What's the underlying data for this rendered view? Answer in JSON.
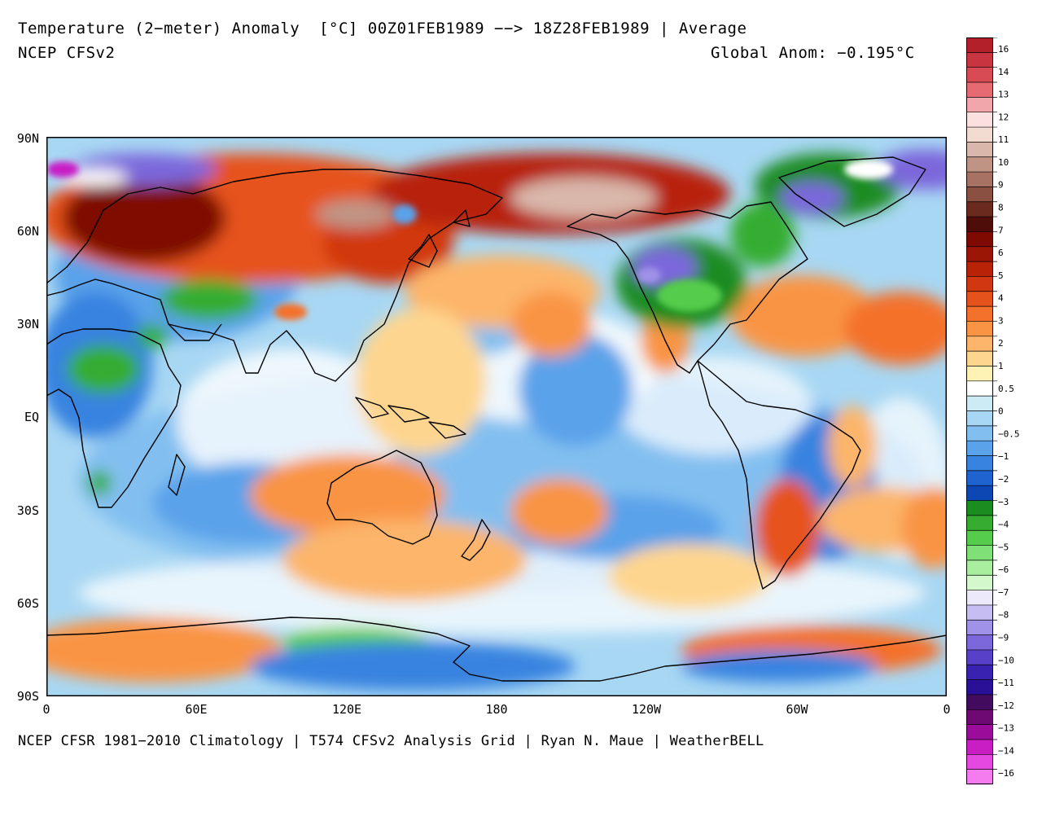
{
  "header": {
    "title": "Temperature (2−meter) Anomaly  [°C] 00Z01FEB1989 −−> 18Z28FEB1989 | Average",
    "model": "NCEP CFSv2",
    "global_anom": "Global Anom: −0.195°C"
  },
  "axes": {
    "y_labels": [
      "90N",
      "60N",
      "30N",
      "EQ",
      "30S",
      "60S",
      "90S"
    ],
    "x_labels": [
      "0",
      "60E",
      "120E",
      "180",
      "120W",
      "60W",
      "0"
    ]
  },
  "footer": "NCEP CFSR 1981−2010 Climatology | T574 CFSv2 Analysis Grid | Ryan N. Maue | WeatherBELL",
  "legend": {
    "labels": [
      "16",
      "14",
      "13",
      "12",
      "11",
      "10",
      "9",
      "8",
      "7",
      "6",
      "5",
      "4",
      "3",
      "2",
      "1",
      "0.5",
      "0",
      "−0.5",
      "−1",
      "−2",
      "−3",
      "−4",
      "−5",
      "−6",
      "−7",
      "−8",
      "−9",
      "−10",
      "−11",
      "−12",
      "−13",
      "−14",
      "−16"
    ],
    "colors": [
      "#b4202a",
      "#c83540",
      "#d84a54",
      "#e66a72",
      "#f0a6aa",
      "#fbe0e0",
      "#f2dcd2",
      "#d9b7aa",
      "#c09485",
      "#a77263",
      "#8a5042",
      "#6b2a1e",
      "#4e0d08",
      "#7e0a02",
      "#9b1605",
      "#b82308",
      "#d13811",
      "#e6521c",
      "#f4712b",
      "#f99445",
      "#fcb56a",
      "#fed58f",
      "#fff2b4",
      "#ffffff",
      "#cdebf5",
      "#a8d7f3",
      "#82bff0",
      "#5aa2ea",
      "#3983e0",
      "#1f63d0",
      "#0d47b4",
      "#1a8c20",
      "#36ad30",
      "#55cc4c",
      "#7fe077",
      "#a9ee9f",
      "#d2f8cb",
      "#ece9fa",
      "#c6bdf3",
      "#a092e8",
      "#7c68db",
      "#5840c8",
      "#3a22b0",
      "#2a1097",
      "#420b5e",
      "#6e0872",
      "#9c0c9a",
      "#c81ec4",
      "#e548df",
      "#f47cef"
    ]
  }
}
